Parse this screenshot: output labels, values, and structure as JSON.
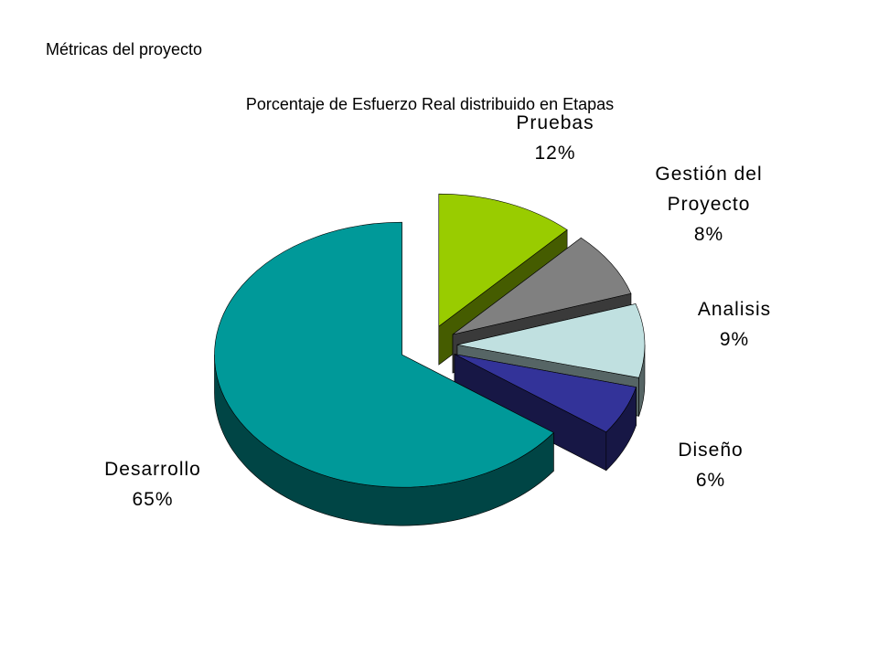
{
  "slide": {
    "title": "Métricas del proyecto"
  },
  "chart_data": {
    "type": "pie3d",
    "title": "Porcentaje de Esfuerzo Real distribuido en Etapas",
    "categories": [
      "Pruebas",
      "Gestión del Proyecto",
      "Analisis",
      "Diseño",
      "Desarrollo"
    ],
    "values": [
      12,
      8,
      9,
      6,
      65
    ],
    "value_labels": [
      "12%",
      "8%",
      "9%",
      "6%",
      "65%"
    ],
    "colors": [
      "#99cc00",
      "#808080",
      "#c0e0e0",
      "#333399",
      "#009999"
    ]
  }
}
